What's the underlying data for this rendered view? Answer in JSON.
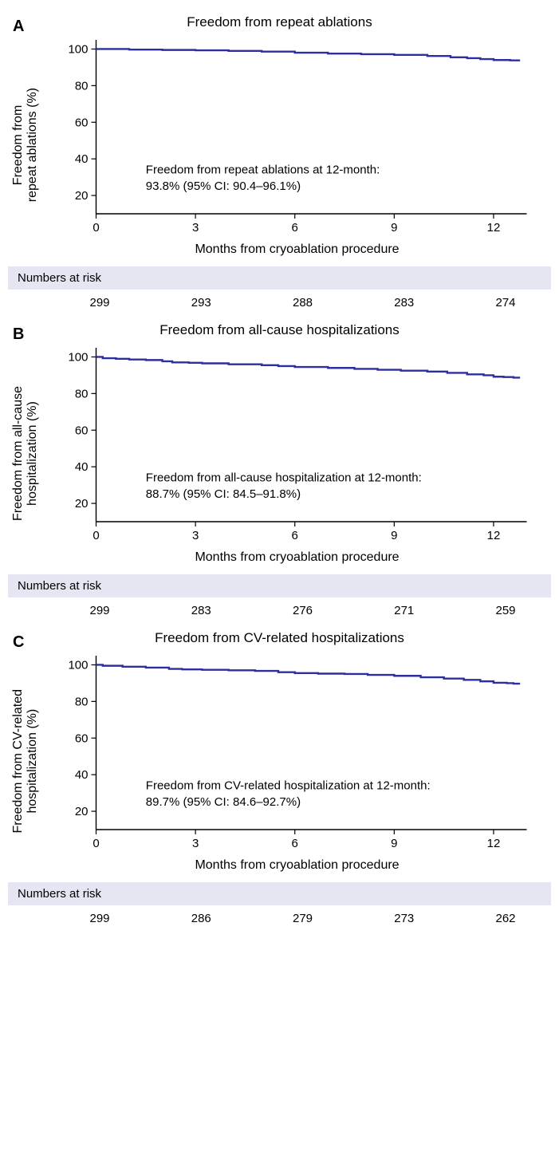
{
  "global": {
    "x_axis_label": "Months from cryoablation procedure",
    "x_ticks": [
      0,
      3,
      6,
      9,
      12
    ],
    "y_ticks": [
      20,
      40,
      60,
      80,
      100
    ],
    "xlim": [
      0,
      13
    ],
    "ylim": [
      10,
      105
    ],
    "line_color": "#2c2f9e",
    "line_width": 2.4,
    "axis_color": "#000000",
    "tick_fontsize": 15,
    "label_fontsize": 16,
    "title_fontsize": 17,
    "background_color": "#ffffff",
    "risk_header_bg": "#e6e6f2",
    "risk_label": "Numbers at risk"
  },
  "panels": [
    {
      "letter": "A",
      "title": "Freedom from repeat ablations",
      "y_label": "Freedom from\nrepeat ablations (%)",
      "annotation_line1": "Freedom from repeat ablations at 12-month:",
      "annotation_line2": "93.8% (95% CI: 90.4–96.1%)",
      "curve": [
        [
          0,
          100
        ],
        [
          0.3,
          100
        ],
        [
          1,
          99.7
        ],
        [
          2,
          99.5
        ],
        [
          3,
          99.3
        ],
        [
          3.5,
          99.3
        ],
        [
          4,
          99.0
        ],
        [
          5,
          98.6
        ],
        [
          6,
          98.0
        ],
        [
          7,
          97.5
        ],
        [
          8,
          97.2
        ],
        [
          9,
          96.8
        ],
        [
          10,
          96.2
        ],
        [
          10.7,
          95.5
        ],
        [
          11.2,
          95.0
        ],
        [
          11.6,
          94.5
        ],
        [
          12,
          94.0
        ],
        [
          12.5,
          93.8
        ],
        [
          12.8,
          93.8
        ]
      ],
      "numbers_at_risk": [
        299,
        293,
        288,
        283,
        274
      ]
    },
    {
      "letter": "B",
      "title": "Freedom from all-cause hospitalizations",
      "y_label": "Freedom from all-cause\nhospitalization (%)",
      "annotation_line1": "Freedom from all-cause hospitalization at 12-month:",
      "annotation_line2": "88.7% (95% CI: 84.5–91.8%)",
      "curve": [
        [
          0,
          100
        ],
        [
          0.2,
          99.3
        ],
        [
          0.6,
          99.0
        ],
        [
          1.0,
          98.6
        ],
        [
          1.5,
          98.3
        ],
        [
          2.0,
          97.6
        ],
        [
          2.3,
          97.0
        ],
        [
          2.8,
          96.8
        ],
        [
          3.2,
          96.5
        ],
        [
          4.0,
          96.0
        ],
        [
          5.0,
          95.5
        ],
        [
          5.5,
          95.0
        ],
        [
          6.0,
          94.5
        ],
        [
          7.0,
          94.0
        ],
        [
          7.8,
          93.5
        ],
        [
          8.5,
          93.0
        ],
        [
          9.2,
          92.5
        ],
        [
          10.0,
          92.0
        ],
        [
          10.6,
          91.3
        ],
        [
          11.2,
          90.5
        ],
        [
          11.7,
          90.0
        ],
        [
          12.0,
          89.2
        ],
        [
          12.3,
          89.0
        ],
        [
          12.6,
          88.7
        ],
        [
          12.8,
          88.7
        ]
      ],
      "numbers_at_risk": [
        299,
        283,
        276,
        271,
        259
      ]
    },
    {
      "letter": "C",
      "title": "Freedom from CV-related hospitalizations",
      "y_label": "Freedom from CV-related\nhospitalization (%)",
      "annotation_line1": "Freedom from CV-related hospitalization at 12-month:",
      "annotation_line2": "89.7% (95% CI: 84.6–92.7%)",
      "curve": [
        [
          0,
          100
        ],
        [
          0.2,
          99.5
        ],
        [
          0.8,
          99.0
        ],
        [
          1.5,
          98.5
        ],
        [
          2.2,
          97.8
        ],
        [
          2.6,
          97.5
        ],
        [
          3.2,
          97.3
        ],
        [
          4.0,
          97.0
        ],
        [
          4.8,
          96.7
        ],
        [
          5.5,
          96.0
        ],
        [
          6.0,
          95.5
        ],
        [
          6.7,
          95.2
        ],
        [
          7.5,
          95.0
        ],
        [
          8.2,
          94.5
        ],
        [
          9.0,
          94.0
        ],
        [
          9.8,
          93.2
        ],
        [
          10.5,
          92.5
        ],
        [
          11.1,
          91.8
        ],
        [
          11.6,
          91.0
        ],
        [
          12.0,
          90.2
        ],
        [
          12.4,
          90.0
        ],
        [
          12.6,
          89.7
        ],
        [
          12.8,
          89.7
        ]
      ],
      "numbers_at_risk": [
        299,
        286,
        279,
        273,
        262
      ]
    }
  ]
}
